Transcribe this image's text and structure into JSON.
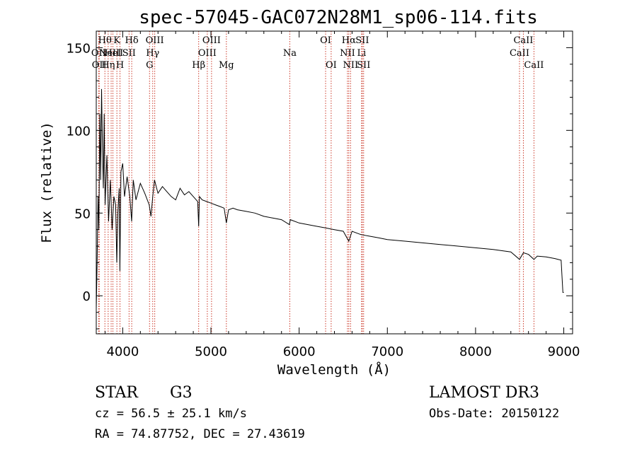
{
  "chart_data": {
    "type": "line",
    "title": "spec-57045-GAC072N28M1_sp06-114.fits",
    "xlabel": "Wavelength (Å)",
    "ylabel": "Flux (relative)",
    "xlim": [
      3700,
      9100
    ],
    "ylim": [
      -23,
      160
    ],
    "x_ticks": [
      4000,
      5000,
      6000,
      7000,
      8000,
      9000
    ],
    "y_ticks": [
      0,
      50,
      100,
      150
    ],
    "x_tick_labels": [
      "4000",
      "5000",
      "6000",
      "7000",
      "8000",
      "9000"
    ],
    "y_tick_labels": [
      "0",
      "50",
      "100",
      "150"
    ],
    "series": [
      {
        "name": "spectrum",
        "x": [
          3700,
          3710,
          3720,
          3730,
          3740,
          3750,
          3760,
          3770,
          3780,
          3790,
          3800,
          3820,
          3840,
          3860,
          3880,
          3900,
          3920,
          3933,
          3945,
          3960,
          3968,
          3980,
          4000,
          4020,
          4050,
          4080,
          4101,
          4120,
          4150,
          4200,
          4250,
          4300,
          4320,
          4340,
          4360,
          4400,
          4450,
          4500,
          4550,
          4600,
          4650,
          4700,
          4750,
          4800,
          4850,
          4861,
          4870,
          4900,
          4950,
          5000,
          5050,
          5100,
          5150,
          5175,
          5200,
          5250,
          5300,
          5400,
          5500,
          5600,
          5700,
          5800,
          5890,
          5900,
          6000,
          6100,
          6200,
          6300,
          6400,
          6500,
          6563,
          6600,
          6700,
          6800,
          6900,
          7000,
          7200,
          7400,
          7600,
          7800,
          8000,
          8200,
          8400,
          8498,
          8542,
          8600,
          8662,
          8700,
          8800,
          8900,
          8970,
          8980,
          8990,
          9000
        ],
        "y": [
          -8,
          20,
          60,
          40,
          110,
          70,
          125,
          90,
          65,
          110,
          55,
          85,
          45,
          70,
          40,
          60,
          55,
          20,
          50,
          65,
          15,
          75,
          80,
          60,
          72,
          60,
          45,
          70,
          58,
          68,
          62,
          55,
          48,
          60,
          70,
          62,
          66,
          63,
          60,
          58,
          65,
          61,
          63,
          60,
          57,
          42,
          60,
          58,
          57,
          56,
          55,
          54,
          53,
          44,
          52,
          53,
          52,
          51,
          50,
          48,
          47,
          46,
          43,
          46,
          44,
          43,
          42,
          41,
          40,
          39,
          33,
          39,
          37,
          36,
          35,
          34,
          33,
          32,
          31,
          30,
          29,
          28,
          26.5,
          22,
          26,
          25,
          22,
          24,
          23.5,
          22.5,
          21.5,
          12,
          2,
          2
        ]
      }
    ],
    "line_markers": [
      {
        "x": 3727,
        "label": "OII",
        "row": 2
      },
      {
        "x": 3734,
        "label": "OII",
        "row": 3
      },
      {
        "x": 3798,
        "label": "Hθ",
        "row": 1
      },
      {
        "x": 3835,
        "label": "Hη",
        "row": 3
      },
      {
        "x": 3869,
        "label": "NeIII",
        "row": 2
      },
      {
        "x": 3889,
        "label": "HeI",
        "row": 2
      },
      {
        "x": 3934,
        "label": "K",
        "row": 1
      },
      {
        "x": 3969,
        "label": "H",
        "row": 3
      },
      {
        "x": 4072,
        "label": "SII",
        "row": 2
      },
      {
        "x": 4102,
        "label": "Hδ",
        "row": 1
      },
      {
        "x": 4304,
        "label": "G",
        "row": 3
      },
      {
        "x": 4340,
        "label": "Hγ",
        "row": 2
      },
      {
        "x": 4363,
        "label": "OIII",
        "row": 1
      },
      {
        "x": 4861,
        "label": "Hβ",
        "row": 3
      },
      {
        "x": 4959,
        "label": "OIII",
        "row": 2
      },
      {
        "x": 5007,
        "label": "OIII",
        "row": 1
      },
      {
        "x": 5175,
        "label": "Mg",
        "row": 3
      },
      {
        "x": 5894,
        "label": "Na",
        "row": 2
      },
      {
        "x": 6300,
        "label": "OI",
        "row": 1
      },
      {
        "x": 6363,
        "label": "OI",
        "row": 3
      },
      {
        "x": 6548,
        "label": "NII",
        "row": 2
      },
      {
        "x": 6563,
        "label": "Hα",
        "row": 1
      },
      {
        "x": 6583,
        "label": "NII",
        "row": 3
      },
      {
        "x": 6708,
        "label": "Li",
        "row": 2
      },
      {
        "x": 6716,
        "label": "SII",
        "row": 1
      },
      {
        "x": 6731,
        "label": "SII",
        "row": 3
      },
      {
        "x": 8498,
        "label": "CaII",
        "row": 2
      },
      {
        "x": 8542,
        "label": "CaII",
        "row": 1
      },
      {
        "x": 8662,
        "label": "CaII",
        "row": 3
      }
    ]
  },
  "info": {
    "class": "STAR",
    "subclass": "G3",
    "survey": "LAMOST DR3",
    "redshift": "cz = 56.5 ± 25.1 km/s",
    "obs_date": "Obs-Date: 20150122",
    "coords": "RA =  74.87752, DEC =  27.43619"
  }
}
